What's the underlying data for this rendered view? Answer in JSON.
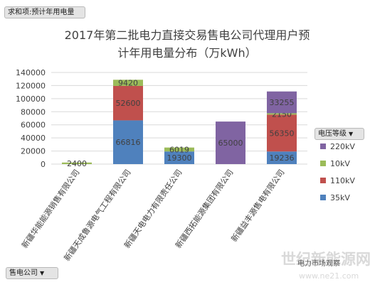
{
  "pivot": {
    "value_field": "求和项:预计年用电量",
    "legend_field": "电压等级",
    "axis_field": "售电公司",
    "dropdown_glyph": "▼"
  },
  "watermark": {
    "main": "世纪新能源网",
    "sub": "www.ne21.com",
    "small": "电力市场观察"
  },
  "chart_data": {
    "type": "bar",
    "stacked": true,
    "title": "2017年第二批电力直接交易售电公司代理用户预计年用电量分布（万kWh）",
    "title_lines": [
      "2017年第二批电力直接交易售电公司代理用户预",
      "计年用电量分布（万kWh）"
    ],
    "categories": [
      "新疆华能能源销售有限公司",
      "新疆天成鲁源电气工程有限公司",
      "新疆天电电力有限责任公司",
      "新疆西拓能源集团有限公司",
      "新疆益丰源售电有限公司"
    ],
    "series": [
      {
        "name": "35kV",
        "color": "#4f81bd",
        "values": [
          null,
          66816,
          19300,
          null,
          19236
        ],
        "labels": [
          "",
          "66816",
          "19300",
          "",
          "19236"
        ]
      },
      {
        "name": "110kV",
        "color": "#c0504d",
        "values": [
          null,
          52600,
          null,
          null,
          56350
        ],
        "labels": [
          "",
          "52600",
          "",
          "",
          "56350"
        ]
      },
      {
        "name": "10kV",
        "color": "#9bbb59",
        "values": [
          2400,
          9420,
          6019,
          null,
          2150
        ],
        "labels": [
          "2400",
          "9420",
          "6019",
          "",
          "2150"
        ]
      },
      {
        "name": "220kV",
        "color": "#8064a2",
        "values": [
          null,
          null,
          null,
          65000,
          33255
        ],
        "labels": [
          "",
          "",
          "",
          "65000",
          "33255"
        ]
      }
    ],
    "legend_order": [
      "220kV",
      "10kV",
      "110kV",
      "35kV"
    ],
    "ylim": [
      0,
      140000
    ],
    "yticks": [
      0,
      20000,
      40000,
      60000,
      80000,
      100000,
      120000,
      140000
    ],
    "grid": true,
    "legend_position": "right",
    "xlabel": "",
    "ylabel": ""
  }
}
